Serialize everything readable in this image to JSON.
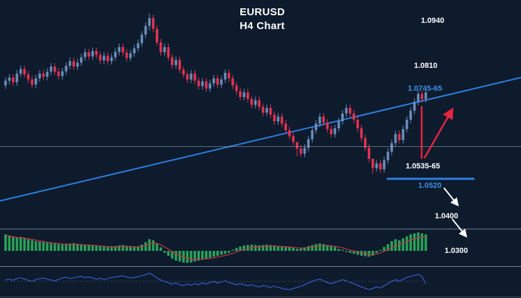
{
  "title": {
    "line1": "EURUSD",
    "line2": "H4 Chart"
  },
  "colors": {
    "background": "#0d1b2d",
    "candle_up": "#6b8cb8",
    "candle_down": "#e23350",
    "trendline": "#2e7fe0",
    "support_line": "#2e7fe0",
    "macd_bar": "#2aa158",
    "macd_signal": "#cc3344",
    "oscillator_line": "#3a57c4",
    "annotation_red": "#e8243f",
    "annotation_white": "#ffffff",
    "divider": "#aab2bf"
  },
  "chart_data": {
    "type": "candlestick",
    "symbol": "EURUSD",
    "timeframe": "H4",
    "levels": [
      {
        "label": "1.0940",
        "price": 1.094,
        "color": "#ffffff"
      },
      {
        "label": "1.0810",
        "price": 1.081,
        "color": "#ffffff"
      },
      {
        "label": "1.0745-65",
        "zone": [
          1.0745,
          1.0765
        ],
        "color": "#3b8fe8"
      },
      {
        "label": "1.0535-65",
        "zone": [
          1.0535,
          1.0565
        ],
        "color": "#ffffff"
      },
      {
        "label": "1.0520",
        "price": 1.052,
        "color": "#3b8fe8"
      },
      {
        "label": "1.0400",
        "price": 1.04,
        "color": "#ffffff"
      },
      {
        "label": "1.0300",
        "price": 1.03,
        "color": "#ffffff"
      }
    ],
    "trendline": {
      "price_start": 1.0464,
      "price_end": 1.078,
      "direction": "ascending"
    },
    "support_line": {
      "price": 1.052
    },
    "annotations": {
      "bounce_arrow": {
        "color": "#e8243f",
        "direction": "up-right"
      },
      "pullback_line": {
        "color": "#e8243f",
        "orientation": "vertical"
      },
      "breakdown_arrows": [
        {
          "color": "#ffffff",
          "direction": "down-right"
        },
        {
          "color": "#ffffff",
          "direction": "down-right"
        }
      ]
    },
    "price_panel": {
      "price_min": 1.0407,
      "price_max": 1.0968,
      "wick": 0.0009,
      "candles": [
        [
          1.076,
          1.0772
        ],
        [
          1.0772,
          1.078
        ],
        [
          1.078,
          1.0768
        ],
        [
          1.0768,
          1.079
        ],
        [
          1.079,
          1.0802
        ],
        [
          1.0802,
          1.0788
        ],
        [
          1.0788,
          1.0775
        ],
        [
          1.0775,
          1.0762
        ],
        [
          1.0762,
          1.0778
        ],
        [
          1.0778,
          1.079
        ],
        [
          1.079,
          1.0782
        ],
        [
          1.0782,
          1.0795
        ],
        [
          1.0795,
          1.0808
        ],
        [
          1.0808,
          1.0795
        ],
        [
          1.0795,
          1.0784
        ],
        [
          1.0784,
          1.0796
        ],
        [
          1.0796,
          1.081
        ],
        [
          1.081,
          1.0822
        ],
        [
          1.0822,
          1.0808
        ],
        [
          1.0808,
          1.0818
        ],
        [
          1.0818,
          1.0832
        ],
        [
          1.0832,
          1.0845
        ],
        [
          1.0845,
          1.0834
        ],
        [
          1.0834,
          1.0848
        ],
        [
          1.0848,
          1.0838
        ],
        [
          1.0838,
          1.0824
        ],
        [
          1.0824,
          1.0836
        ],
        [
          1.0836,
          1.0822
        ],
        [
          1.0822,
          1.0832
        ],
        [
          1.0832,
          1.0846
        ],
        [
          1.0846,
          1.0858
        ],
        [
          1.0858,
          1.0844
        ],
        [
          1.0844,
          1.083
        ],
        [
          1.083,
          1.0842
        ],
        [
          1.0842,
          1.0855
        ],
        [
          1.0855,
          1.0868
        ],
        [
          1.0868,
          1.089
        ],
        [
          1.089,
          1.0912
        ],
        [
          1.0912,
          1.0932,
          1.0944,
          1.09
        ],
        [
          1.0932,
          1.0905
        ],
        [
          1.0905,
          1.087
        ],
        [
          1.087,
          1.0845
        ],
        [
          1.0845,
          1.0858
        ],
        [
          1.0858,
          1.0832
        ],
        [
          1.0832,
          1.0812
        ],
        [
          1.0812,
          1.0825
        ],
        [
          1.0825,
          1.08
        ],
        [
          1.08,
          1.0788
        ],
        [
          1.0788,
          1.0775
        ],
        [
          1.0775,
          1.079
        ],
        [
          1.079,
          1.0772
        ],
        [
          1.0772,
          1.0758
        ],
        [
          1.0758,
          1.077
        ],
        [
          1.077,
          1.0752
        ],
        [
          1.0752,
          1.0765
        ],
        [
          1.0765,
          1.0778
        ],
        [
          1.0778,
          1.0762
        ],
        [
          1.0762,
          1.0775
        ],
        [
          1.0775,
          1.0792
        ],
        [
          1.0792,
          1.0778
        ],
        [
          1.0778,
          1.076
        ],
        [
          1.076,
          1.0745
        ],
        [
          1.0745,
          1.073
        ],
        [
          1.073,
          1.0742
        ],
        [
          1.0742,
          1.0725
        ],
        [
          1.0725,
          1.071
        ],
        [
          1.071,
          1.0722
        ],
        [
          1.0722,
          1.0705
        ],
        [
          1.0705,
          1.069
        ],
        [
          1.069,
          1.0702
        ],
        [
          1.0702,
          1.0685
        ],
        [
          1.0685,
          1.0668
        ],
        [
          1.0668,
          1.068
        ],
        [
          1.068,
          1.0662
        ],
        [
          1.0662,
          1.0645
        ],
        [
          1.0645,
          1.063
        ],
        [
          1.063,
          1.0615
        ],
        [
          1.0615,
          1.0598,
          1.0608,
          1.0578
        ],
        [
          1.0598,
          1.0585
        ],
        [
          1.0585,
          1.06
        ],
        [
          1.06,
          1.0622
        ],
        [
          1.0622,
          1.0645
        ],
        [
          1.0645,
          1.0662
        ],
        [
          1.0662,
          1.068
        ],
        [
          1.068,
          1.0665
        ],
        [
          1.0665,
          1.0648
        ],
        [
          1.0648,
          1.0635
        ],
        [
          1.0635,
          1.065
        ],
        [
          1.065,
          1.0668
        ],
        [
          1.0668,
          1.0688
        ],
        [
          1.0688,
          1.0702
        ],
        [
          1.0702,
          1.0688
        ],
        [
          1.0688,
          1.0672
        ],
        [
          1.0672,
          1.065
        ],
        [
          1.065,
          1.0625
        ],
        [
          1.0625,
          1.06
        ],
        [
          1.06,
          1.0572
        ],
        [
          1.0572,
          1.0548,
          1.0556,
          1.0533
        ],
        [
          1.0548,
          1.056
        ],
        [
          1.056,
          1.0545
        ],
        [
          1.0545,
          1.0568
        ],
        [
          1.0568,
          1.059
        ],
        [
          1.059,
          1.0612
        ],
        [
          1.0612,
          1.0635
        ],
        [
          1.0635,
          1.062
        ],
        [
          1.062,
          1.0648
        ],
        [
          1.0648,
          1.0672
        ],
        [
          1.0672,
          1.0695
        ],
        [
          1.0695,
          1.0718
        ],
        [
          1.0718,
          1.0738
        ],
        [
          1.0738,
          1.0725
        ],
        [
          1.0725,
          1.0742
        ]
      ]
    },
    "macd": {
      "histogram": [
        0.85,
        0.8,
        0.75,
        0.7,
        0.72,
        0.68,
        0.6,
        0.55,
        0.5,
        0.48,
        0.45,
        0.42,
        0.4,
        0.38,
        0.35,
        0.33,
        0.35,
        0.38,
        0.4,
        0.36,
        0.33,
        0.3,
        0.32,
        0.3,
        0.26,
        0.24,
        0.22,
        0.2,
        0.22,
        0.25,
        0.28,
        0.3,
        0.26,
        0.22,
        0.2,
        0.24,
        0.32,
        0.45,
        0.6,
        0.55,
        0.4,
        0.18,
        -0.1,
        -0.25,
        -0.4,
        -0.5,
        -0.55,
        -0.6,
        -0.62,
        -0.6,
        -0.55,
        -0.5,
        -0.45,
        -0.4,
        -0.35,
        -0.3,
        -0.25,
        -0.2,
        -0.15,
        -0.1,
        0.05,
        0.15,
        0.22,
        0.28,
        0.3,
        0.32,
        0.3,
        0.28,
        0.3,
        0.32,
        0.3,
        0.28,
        0.25,
        0.22,
        0.2,
        0.18,
        0.15,
        0.1,
        0.12,
        0.18,
        0.25,
        0.3,
        0.35,
        0.38,
        0.35,
        0.3,
        0.25,
        0.2,
        0.1,
        0.05,
        -0.05,
        -0.1,
        -0.15,
        -0.2,
        -0.25,
        -0.28,
        -0.3,
        -0.25,
        -0.1,
        0.05,
        0.2,
        0.35,
        0.5,
        0.6,
        0.55,
        0.65,
        0.75,
        0.85,
        0.9,
        0.95,
        0.9,
        0.85
      ]
    },
    "lower_oscillator": {
      "range": [
        0,
        100
      ],
      "values": [
        55,
        58,
        54,
        60,
        63,
        58,
        54,
        50,
        56,
        60,
        62,
        58,
        55,
        52,
        57,
        62,
        65,
        60,
        63,
        66,
        68,
        64,
        66,
        62,
        58,
        61,
        57,
        60,
        64,
        66,
        68,
        70,
        66,
        62,
        64,
        67,
        70,
        74,
        80,
        72,
        62,
        55,
        50,
        45,
        40,
        44,
        38,
        35,
        40,
        36,
        42,
        38,
        45,
        40,
        46,
        50,
        44,
        48,
        52,
        46,
        42,
        38,
        42,
        38,
        34,
        38,
        33,
        30,
        35,
        32,
        28,
        33,
        28,
        25,
        22,
        20,
        24,
        28,
        32,
        38,
        44,
        50,
        55,
        58,
        52,
        46,
        42,
        46,
        52,
        56,
        52,
        46,
        42,
        36,
        30,
        25,
        20,
        24,
        30,
        26,
        34,
        42,
        50,
        56,
        50,
        58,
        64,
        68,
        72,
        75,
        68,
        40
      ]
    }
  }
}
